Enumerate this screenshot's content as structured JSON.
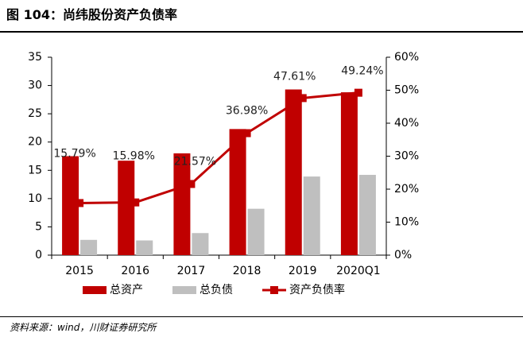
{
  "figure": {
    "title": "图 104：尚纬股份资产负债率",
    "source": "资料来源：wind，川财证券研究所"
  },
  "chart_data": {
    "type": "bar",
    "categories": [
      "2015",
      "2016",
      "2017",
      "2018",
      "2019",
      "2020Q1"
    ],
    "series": [
      {
        "name": "总资产",
        "type": "bar",
        "axis": "left",
        "color": "#C00000",
        "values": [
          17.5,
          16.7,
          18.0,
          22.3,
          29.3,
          28.8
        ]
      },
      {
        "name": "总负债",
        "type": "bar",
        "axis": "left",
        "color": "#BFBFBF",
        "values": [
          2.7,
          2.6,
          3.9,
          8.2,
          13.9,
          14.2
        ]
      },
      {
        "name": "资产负债率",
        "type": "line",
        "axis": "right",
        "color": "#C00000",
        "values": [
          15.79,
          15.98,
          21.57,
          36.98,
          47.61,
          49.24
        ],
        "labels": [
          "15.79%",
          "15.98%",
          "21.57%",
          "36.98%",
          "47.61%",
          "49.24%"
        ]
      }
    ],
    "y_left": {
      "min": 0,
      "max": 35,
      "ticks": [
        "0",
        "5",
        "10",
        "15",
        "20",
        "25",
        "30",
        "35"
      ]
    },
    "y_right": {
      "min": 0,
      "max": 60,
      "ticks": [
        "0%",
        "10%",
        "20%",
        "30%",
        "40%",
        "50%",
        "60%"
      ]
    },
    "grid": false,
    "legend": "bottom"
  }
}
